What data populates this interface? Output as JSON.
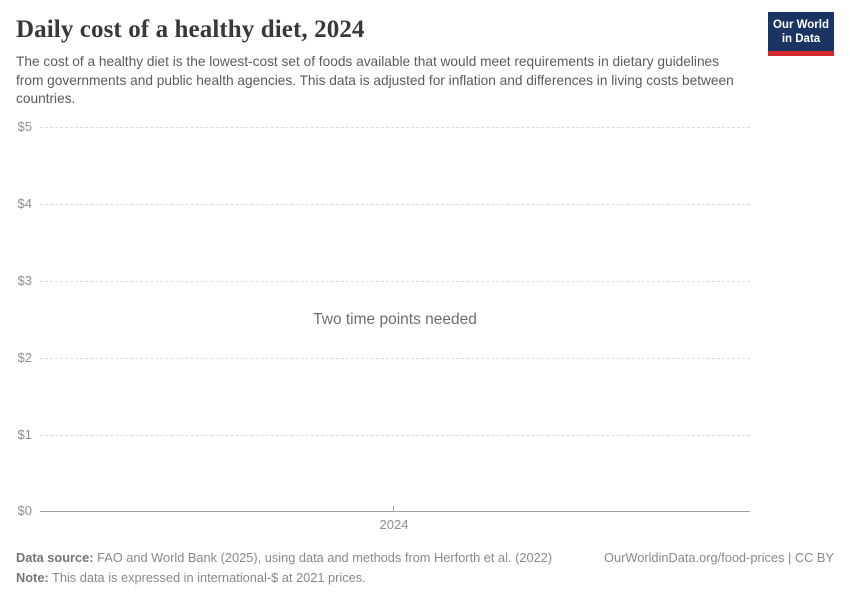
{
  "header": {
    "title": "Daily cost of a healthy diet, 2024",
    "subtitle": "The cost of a healthy diet is the lowest-cost set of foods available that would meet requirements in dietary guidelines from governments and public health agencies. This data is adjusted for inflation and differences in living costs between countries.",
    "logo": {
      "line1": "Our World",
      "line2": "in Data",
      "background_color": "#1a3564",
      "bar_color": "#d42b2f"
    }
  },
  "chart_data": {
    "type": "line",
    "title": "Daily cost of a healthy diet, 2024",
    "xlabel": "",
    "ylabel": "",
    "ylim": [
      0,
      5
    ],
    "y_tick_labels": [
      "$0",
      "$1",
      "$2",
      "$3",
      "$4",
      "$5"
    ],
    "x_tick_labels": [
      "2024"
    ],
    "x": [
      2024
    ],
    "series": [],
    "empty_state_message": "Two time points needed",
    "grid": "horizontal-dashed",
    "legend_position": "none"
  },
  "footer": {
    "data_source_label": "Data source:",
    "data_source_text": " FAO and World Bank (2025), using data and methods from Herforth et al. (2022)",
    "note_label": "Note:",
    "note_text": " This data is expressed in international-$ at 2021 prices.",
    "rights": "OurWorldinData.org/food-prices | CC BY"
  }
}
